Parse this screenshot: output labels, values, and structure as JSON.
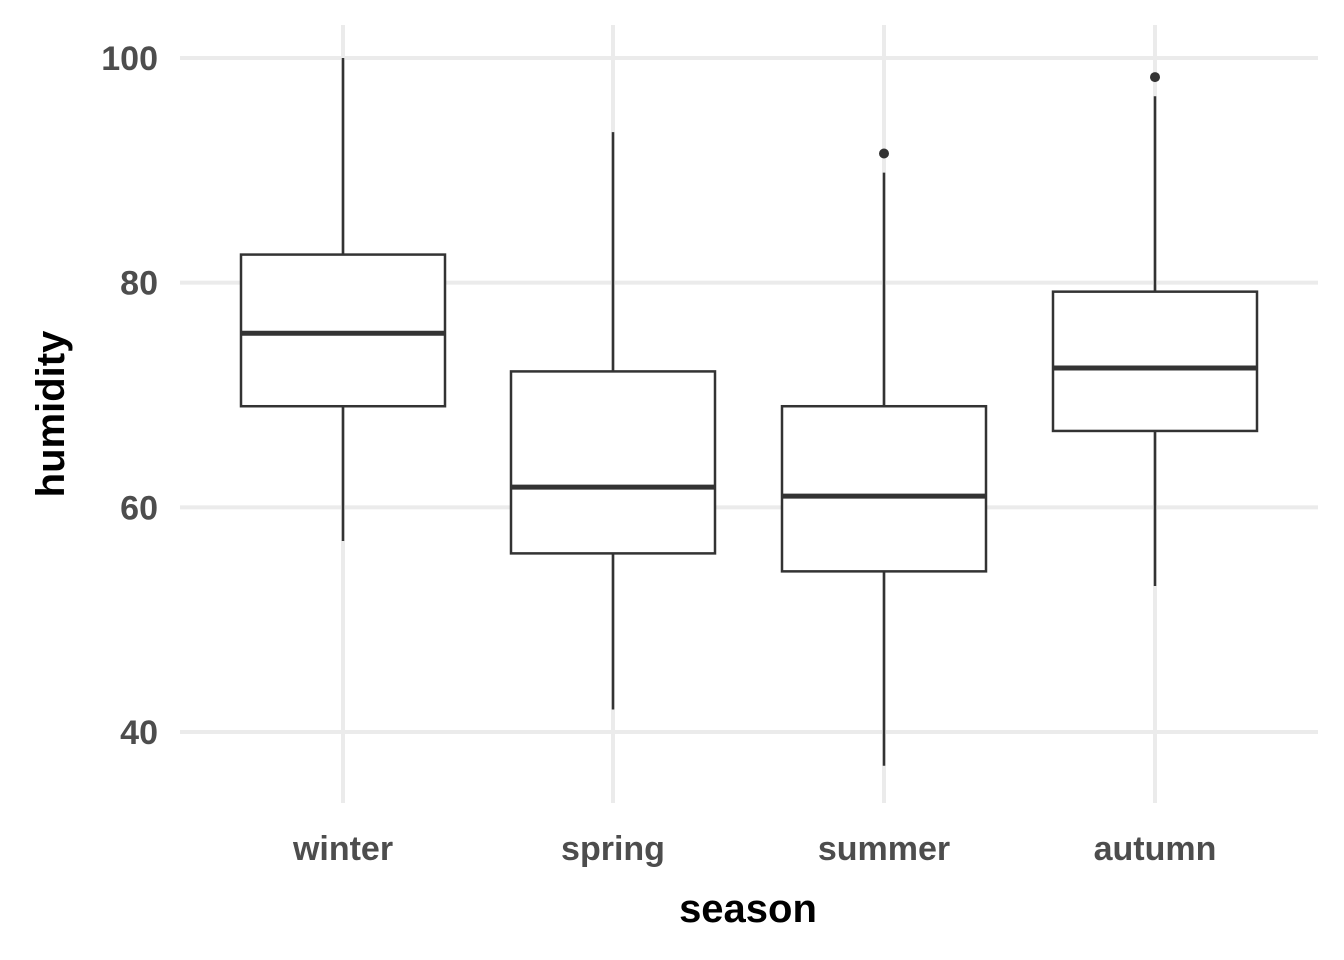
{
  "chart_data": {
    "type": "boxplot",
    "xlabel": "season",
    "ylabel": "humidity",
    "ylim": [
      33,
      106
    ],
    "yticks": [
      40,
      60,
      80,
      100
    ],
    "grid": true,
    "categories": [
      "winter",
      "spring",
      "summer",
      "autumn"
    ],
    "boxes": [
      {
        "category": "winter",
        "whisker_low": 57.0,
        "q1": 69.0,
        "median": 75.5,
        "q3": 82.5,
        "whisker_high": 100.0,
        "outliers": []
      },
      {
        "category": "spring",
        "whisker_low": 42.0,
        "q1": 55.9,
        "median": 61.8,
        "q3": 72.1,
        "whisker_high": 93.4,
        "outliers": []
      },
      {
        "category": "summer",
        "whisker_low": 37.0,
        "q1": 54.3,
        "median": 61.0,
        "q3": 69.0,
        "whisker_high": 89.8,
        "outliers": [
          91.5
        ]
      },
      {
        "category": "autumn",
        "whisker_low": 53.0,
        "q1": 66.8,
        "median": 72.4,
        "q3": 79.2,
        "whisker_high": 96.6,
        "outliers": [
          98.3
        ]
      }
    ]
  }
}
